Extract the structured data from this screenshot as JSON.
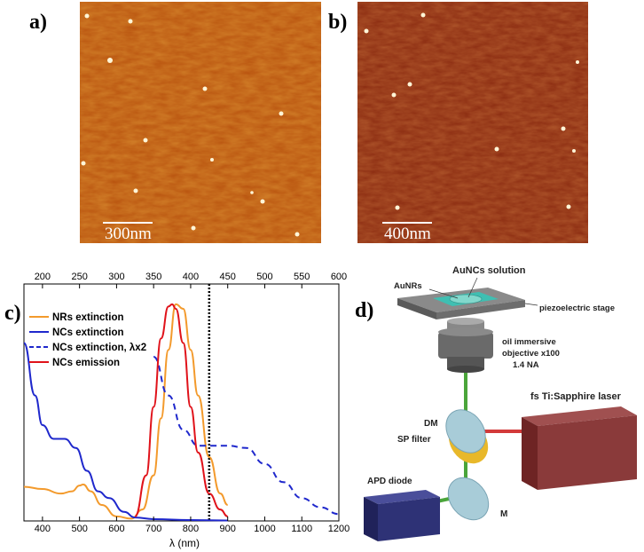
{
  "panels": {
    "a": {
      "label": "a)",
      "scalebar_text": "300nm"
    },
    "b": {
      "label": "b)",
      "scalebar_text": "400nm"
    },
    "c": {
      "label": "c)"
    },
    "d": {
      "label": "d)"
    }
  },
  "colors": {
    "afm_a_bg": "#b8520e",
    "afm_b_bg": "#8a2a10",
    "orange": "#f39a2c",
    "blue": "#1f28cc",
    "red": "#e0121a"
  },
  "chart_data": {
    "type": "line",
    "xlabel": "λ (nm)",
    "xlim": [
      350,
      1200
    ],
    "xticks": [
      400,
      500,
      600,
      700,
      800,
      900,
      1000,
      1100,
      1200
    ],
    "top_xlim": [
      175,
      600
    ],
    "top_xticks": [
      200,
      250,
      300,
      350,
      400,
      450,
      500,
      550,
      600
    ],
    "ylim": [
      0,
      1
    ],
    "vline_x": 850,
    "legend_position": "top-left",
    "series": [
      {
        "name": "NRs extinction",
        "color": "#f39a2c",
        "dash": false,
        "x": [
          350,
          400,
          450,
          480,
          500,
          510,
          530,
          560,
          600,
          640,
          670,
          700,
          720,
          740,
          760,
          780,
          800,
          820,
          850,
          880,
          900
        ],
        "y": [
          0.15,
          0.14,
          0.12,
          0.13,
          0.155,
          0.16,
          0.13,
          0.07,
          0.02,
          0.01,
          0.05,
          0.2,
          0.45,
          0.75,
          0.95,
          0.93,
          0.75,
          0.55,
          0.28,
          0.12,
          0.07
        ]
      },
      {
        "name": "NCs extinction",
        "color": "#1f28cc",
        "dash": false,
        "x": [
          350,
          380,
          400,
          430,
          460,
          490,
          520,
          550,
          580,
          620,
          650,
          700,
          800,
          900
        ],
        "y": [
          0.78,
          0.55,
          0.42,
          0.36,
          0.36,
          0.32,
          0.22,
          0.13,
          0.1,
          0.04,
          0.015,
          0.008,
          0.004,
          0.002
        ]
      },
      {
        "name": "NCs extinction, λx2",
        "color": "#1f28cc",
        "dash": true,
        "x": [
          700,
          740,
          780,
          820,
          850,
          900,
          950,
          1000,
          1050,
          1100,
          1150,
          1200
        ],
        "y": [
          0.72,
          0.55,
          0.4,
          0.33,
          0.33,
          0.33,
          0.32,
          0.25,
          0.17,
          0.1,
          0.06,
          0.03
        ]
      },
      {
        "name": "NCs emission",
        "color": "#e0121a",
        "dash": false,
        "x": [
          650,
          680,
          700,
          720,
          740,
          750,
          760,
          780,
          800,
          820,
          850,
          880,
          900
        ],
        "y": [
          0.02,
          0.2,
          0.5,
          0.8,
          0.94,
          0.95,
          0.93,
          0.78,
          0.5,
          0.3,
          0.12,
          0.05,
          0.02
        ]
      }
    ]
  },
  "diagram": {
    "labels": {
      "solution": "AuNCs solution",
      "aunrs": "AuNRs",
      "stage": "piezoelectric stage",
      "objective1": "oil immersive",
      "objective2": "objective x100",
      "objective3": "1.4 NA",
      "dm": "DM",
      "sp": "SP filter",
      "laser": "fs Ti:Sapphire laser",
      "apd": "APD diode",
      "m": "M"
    }
  }
}
